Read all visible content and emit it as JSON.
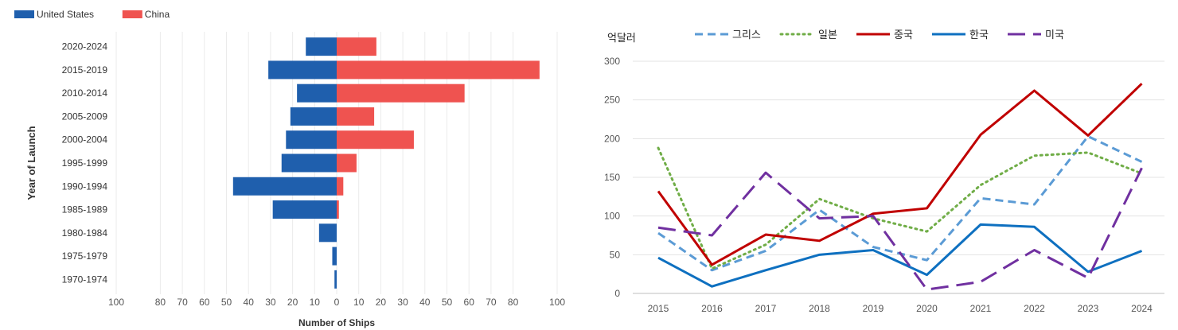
{
  "chart_data": [
    {
      "type": "bar",
      "orientation": "horizontal-diverging",
      "title": "",
      "xlabel": "Number of Ships",
      "ylabel": "Year of Launch",
      "categories": [
        "2020-2024",
        "2015-2019",
        "2010-2014",
        "2005-2009",
        "2000-2004",
        "1995-1999",
        "1990-1994",
        "1985-1989",
        "1980-1984",
        "1975-1979",
        "1970-1974"
      ],
      "series": [
        {
          "name": "United States",
          "color": "#1f5fad",
          "direction": "left",
          "values": [
            14,
            31,
            18,
            21,
            23,
            25,
            47,
            29,
            8,
            2,
            1
          ]
        },
        {
          "name": "China",
          "color": "#ef5350",
          "direction": "right",
          "values": [
            18,
            92,
            58,
            17,
            35,
            9,
            3,
            1,
            0,
            0,
            0
          ]
        }
      ],
      "xticks": [
        {
          "value": -100,
          "label": "100"
        },
        {
          "value": -80,
          "label": "80"
        },
        {
          "value": -70,
          "label": "70"
        },
        {
          "value": -60,
          "label": "60"
        },
        {
          "value": -50,
          "label": "50"
        },
        {
          "value": -40,
          "label": "40"
        },
        {
          "value": -30,
          "label": "30"
        },
        {
          "value": -20,
          "label": "20"
        },
        {
          "value": -10,
          "label": "10"
        },
        {
          "value": 0,
          "label": "0"
        },
        {
          "value": 10,
          "label": "10"
        },
        {
          "value": 20,
          "label": "20"
        },
        {
          "value": 30,
          "label": "30"
        },
        {
          "value": 40,
          "label": "40"
        },
        {
          "value": 50,
          "label": "50"
        },
        {
          "value": 60,
          "label": "60"
        },
        {
          "value": 70,
          "label": "70"
        },
        {
          "value": 80,
          "label": "80"
        },
        {
          "value": 100,
          "label": "100"
        }
      ],
      "legend_position": "top-left",
      "grid": true
    },
    {
      "type": "line",
      "title": "",
      "ylabel": "억달러",
      "xlabel": "",
      "x": [
        "2015",
        "2016",
        "2017",
        "2018",
        "2019",
        "2020",
        "2021",
        "2022",
        "2023",
        "2024"
      ],
      "ylim": [
        0,
        300
      ],
      "yticks": [
        0,
        50,
        100,
        150,
        200,
        250,
        300
      ],
      "series": [
        {
          "name": "그리스",
          "color": "#5b9bd5",
          "dash": "dashed",
          "values": [
            78,
            30,
            55,
            108,
            60,
            43,
            123,
            115,
            203,
            170
          ]
        },
        {
          "name": "일본",
          "color": "#70ad47",
          "dash": "dotted",
          "values": [
            188,
            32,
            63,
            122,
            97,
            80,
            140,
            178,
            182,
            155
          ]
        },
        {
          "name": "중국",
          "color": "#c00000",
          "dash": "solid",
          "values": [
            132,
            37,
            76,
            68,
            103,
            110,
            205,
            262,
            204,
            271
          ]
        },
        {
          "name": "한국",
          "color": "#0e70c0",
          "dash": "solid",
          "values": [
            46,
            9,
            30,
            50,
            56,
            24,
            89,
            86,
            28,
            55
          ]
        },
        {
          "name": "미국",
          "color": "#7030a0",
          "dash": "longdash",
          "values": [
            85,
            75,
            156,
            97,
            100,
            5,
            15,
            56,
            20,
            162
          ]
        }
      ],
      "legend_position": "top",
      "grid": true
    }
  ]
}
